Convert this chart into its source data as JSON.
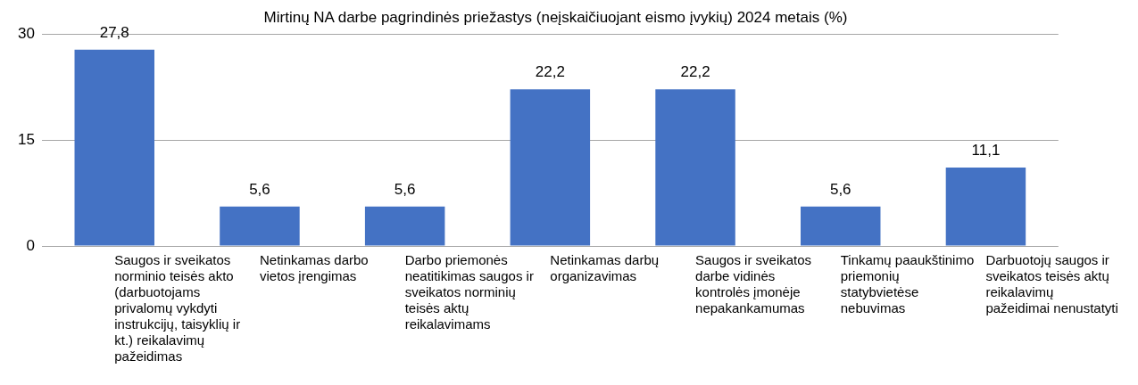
{
  "chart_data": {
    "type": "bar",
    "title": "Mirtinų NA darbe pagrindinės priežastys (neįskaičiuojant eismo įvykių) 2024 metais (%)",
    "categories": [
      "Saugos ir sveikatos norminio teisės akto (darbuotojams privalomų vykdyti instrukcijų, taisyklių ir kt.) reikalavimų pažeidimas",
      "Netinkamas darbo vietos įrengimas",
      "Darbo priemonės neatitikimas saugos ir sveikatos norminių teisės aktų reikalavimams",
      "Netinkamas darbų organizavimas",
      "Saugos ir sveikatos darbe vidinės kontrolės įmonėje nepakankamumas",
      "Tinkamų paaukštinimo priemonių statybvietėse nebuvimas",
      "Darbuotojų saugos ir sveikatos teisės aktų reikalavimų pažeidimai nenustatyti"
    ],
    "values": [
      27.8,
      5.6,
      5.6,
      22.2,
      22.2,
      5.6,
      11.1
    ],
    "color": "#4472c4",
    "value_labels": [
      "27,8",
      "5,6",
      "5,6",
      "22,2",
      "22,2",
      "5,6",
      "11,1"
    ],
    "ylim": [
      0,
      30
    ],
    "yticks": [
      0,
      15,
      30
    ],
    "grid": "y"
  }
}
